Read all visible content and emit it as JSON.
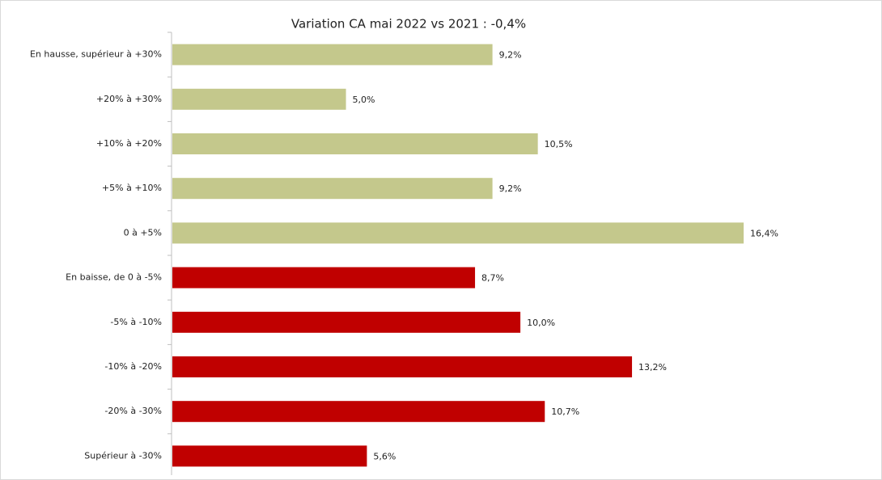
{
  "chart_data": {
    "type": "bar",
    "orientation": "horizontal",
    "title": "Variation CA mai 2022 vs 2021 : -0,4%",
    "categories": [
      "En hausse, supérieur à +30%",
      "+20% à +30%",
      "+10% à +20%",
      "+5% à +10%",
      "0 à +5%",
      "En baisse, de 0 à -5%",
      "-5% à -10%",
      "-10% à -20%",
      "-20% à -30%",
      "Supérieur à -30%"
    ],
    "values": [
      9.2,
      5.0,
      10.5,
      9.2,
      16.4,
      8.7,
      10.0,
      13.2,
      10.7,
      5.6
    ],
    "value_labels": [
      "9,2%",
      "5,0%",
      "10,5%",
      "9,2%",
      "16,4%",
      "8,7%",
      "10,0%",
      "13,2%",
      "10,7%",
      "5,6%"
    ],
    "colors": [
      "#c4c88c",
      "#c4c88c",
      "#c4c88c",
      "#c4c88c",
      "#c4c88c",
      "#c00000",
      "#c00000",
      "#c00000",
      "#c00000",
      "#c00000"
    ]
  }
}
